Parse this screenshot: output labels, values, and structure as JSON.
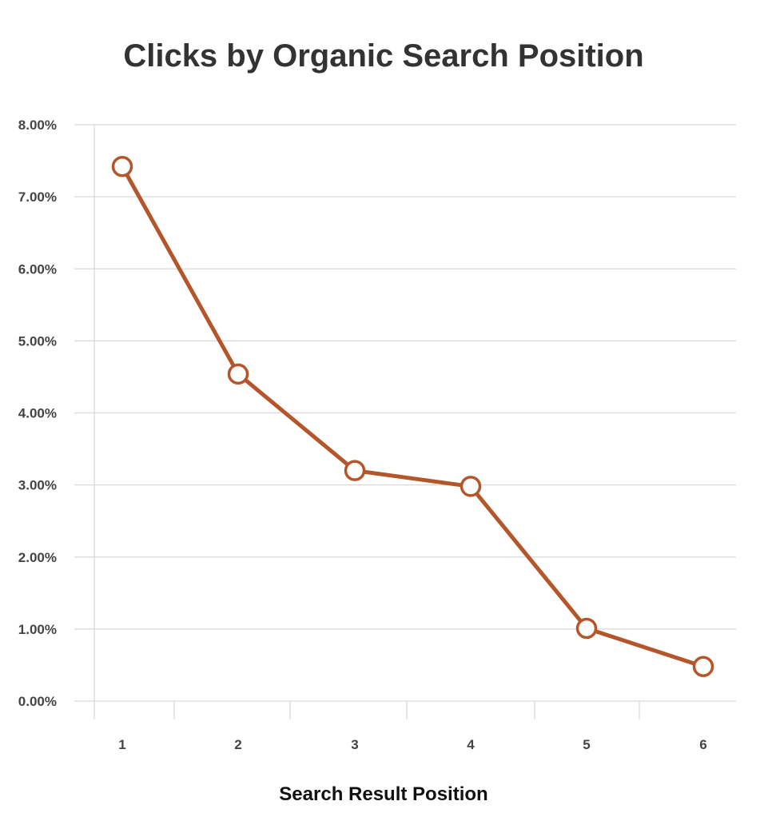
{
  "chart_data": {
    "type": "line",
    "title": "Clicks by Organic Search Position",
    "xlabel": "Search Result Position",
    "ylabel": "",
    "categories": [
      "1",
      "2",
      "3",
      "4",
      "5",
      "6"
    ],
    "series": [
      {
        "values": [
          7.42,
          4.54,
          3.2,
          2.98,
          1.01,
          0.48
        ]
      }
    ],
    "ylim": [
      0,
      8
    ],
    "yticks": [
      0,
      1,
      2,
      3,
      4,
      5,
      6,
      7,
      8
    ],
    "ytick_labels": [
      "0.00%",
      "1.00%",
      "2.00%",
      "3.00%",
      "4.00%",
      "5.00%",
      "6.00%",
      "7.00%",
      "8.00%"
    ],
    "grid": true,
    "legend": "none",
    "line_color": "#b5562a",
    "marker_fill": "#ffffff"
  }
}
